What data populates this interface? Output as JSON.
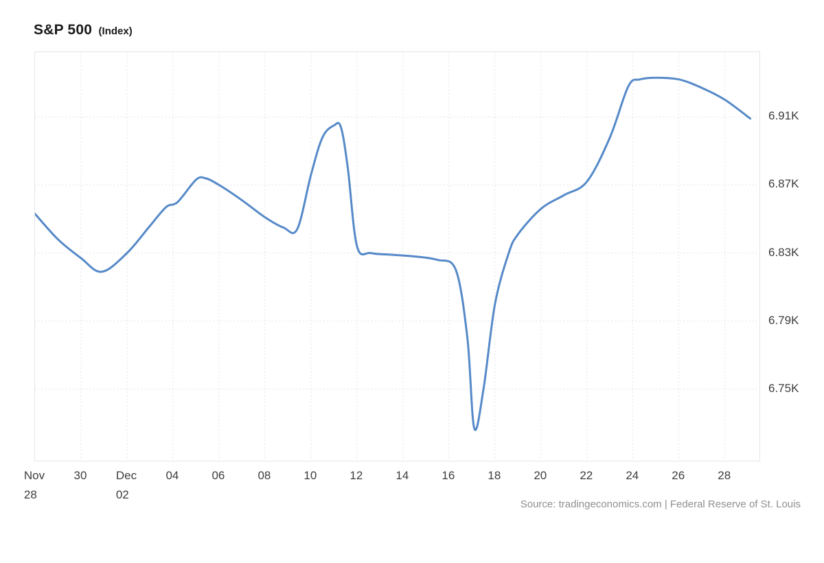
{
  "header": {
    "title": "S&P 500",
    "subtitle": "(Index)"
  },
  "footer": {
    "source": "Source: tradingeconomics.com | Federal Reserve of St. Louis"
  },
  "colors": {
    "line": "#5589c8",
    "grid": "#dedede",
    "plot_border": "#e4e4e4",
    "axis_text": "#3c3c3c",
    "title_text": "#1a1a1a",
    "source_text": "#8f8f8f"
  },
  "chart_data": {
    "type": "line",
    "title": "S&P 500 (Index)",
    "xlabel": "",
    "ylabel": "Index",
    "legend": "none",
    "grid": "dotted",
    "x_unit": "days since Nov 28",
    "x_range": [
      0,
      31.5
    ],
    "ylim": [
      6708,
      6948
    ],
    "y_ticks": [
      {
        "value": 6910,
        "label": "6.91K"
      },
      {
        "value": 6870,
        "label": "6.87K"
      },
      {
        "value": 6830,
        "label": "6.83K"
      },
      {
        "value": 6790,
        "label": "6.79K"
      },
      {
        "value": 6750,
        "label": "6.75K"
      }
    ],
    "x_ticks": [
      {
        "day": 0,
        "line1": "Nov",
        "line2": "28"
      },
      {
        "day": 2,
        "line1": "30"
      },
      {
        "day": 4,
        "line1": "Dec",
        "line2": "02"
      },
      {
        "day": 6,
        "line1": "04"
      },
      {
        "day": 8,
        "line1": "06"
      },
      {
        "day": 10,
        "line1": "08"
      },
      {
        "day": 12,
        "line1": "10"
      },
      {
        "day": 14,
        "line1": "12"
      },
      {
        "day": 16,
        "line1": "14"
      },
      {
        "day": 18,
        "line1": "16"
      },
      {
        "day": 20,
        "line1": "18"
      },
      {
        "day": 22,
        "line1": "20"
      },
      {
        "day": 24,
        "line1": "22"
      },
      {
        "day": 26,
        "line1": "24"
      },
      {
        "day": 28,
        "line1": "26"
      },
      {
        "day": 30,
        "line1": "28"
      }
    ],
    "series": [
      {
        "name": "S&P 500",
        "points": [
          [
            0,
            6853
          ],
          [
            1,
            6838
          ],
          [
            2,
            6827
          ],
          [
            2.9,
            6819
          ],
          [
            4,
            6830
          ],
          [
            5,
            6846
          ],
          [
            5.7,
            6857
          ],
          [
            6.2,
            6860
          ],
          [
            7,
            6873
          ],
          [
            7.4,
            6874
          ],
          [
            8,
            6870
          ],
          [
            9,
            6861
          ],
          [
            10,
            6851
          ],
          [
            10.8,
            6845
          ],
          [
            11.4,
            6844
          ],
          [
            12,
            6876
          ],
          [
            12.5,
            6898
          ],
          [
            13,
            6905
          ],
          [
            13.3,
            6904
          ],
          [
            13.6,
            6880
          ],
          [
            14,
            6834
          ],
          [
            14.6,
            6830
          ],
          [
            15.5,
            6829
          ],
          [
            16.5,
            6828
          ],
          [
            17.5,
            6826
          ],
          [
            18.3,
            6820
          ],
          [
            18.8,
            6780
          ],
          [
            19.1,
            6727
          ],
          [
            19.5,
            6750
          ],
          [
            20,
            6800
          ],
          [
            20.6,
            6830
          ],
          [
            21,
            6841
          ],
          [
            22,
            6856
          ],
          [
            23,
            6864
          ],
          [
            24,
            6872
          ],
          [
            25,
            6898
          ],
          [
            25.8,
            6928
          ],
          [
            26.3,
            6932
          ],
          [
            27,
            6933
          ],
          [
            28,
            6932
          ],
          [
            29,
            6927
          ],
          [
            30,
            6920
          ],
          [
            31.1,
            6909
          ]
        ]
      }
    ],
    "daily": {
      "dates": [
        "Nov 28",
        "Nov 29",
        "Nov 30",
        "Dec 01",
        "Dec 02",
        "Dec 03",
        "Dec 04",
        "Dec 05",
        "Dec 06",
        "Dec 07",
        "Dec 08",
        "Dec 09",
        "Dec 10",
        "Dec 11",
        "Dec 12",
        "Dec 13",
        "Dec 14",
        "Dec 15",
        "Dec 16",
        "Dec 17",
        "Dec 18",
        "Dec 19",
        "Dec 20",
        "Dec 21",
        "Dec 22",
        "Dec 23",
        "Dec 24",
        "Dec 25",
        "Dec 26",
        "Dec 27",
        "Dec 28",
        "Dec 29"
      ],
      "values": [
        6853,
        6838,
        6827,
        6819,
        6830,
        6846,
        6860,
        6874,
        6870,
        6861,
        6851,
        6845,
        6876,
        6905,
        6834,
        6829,
        6828,
        6827,
        6823,
        6725,
        6800,
        6841,
        6856,
        6864,
        6872,
        6898,
        6931,
        6933,
        6932,
        6927,
        6920,
        6909
      ]
    }
  }
}
